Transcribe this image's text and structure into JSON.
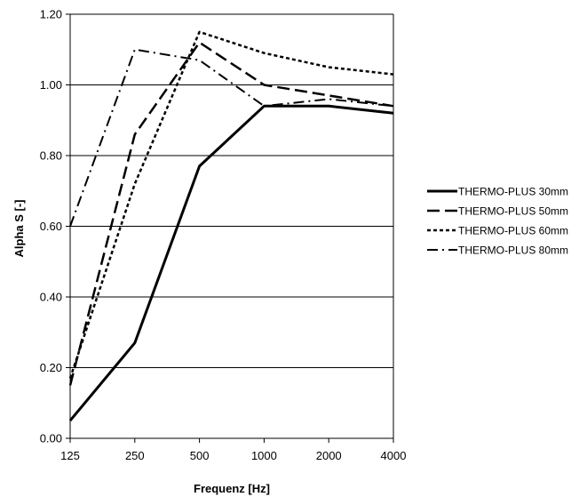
{
  "chart_data": {
    "type": "line",
    "title": "",
    "xlabel": "Frequenz [Hz]",
    "ylabel": "Alpha S [-]",
    "categories": [
      "125",
      "250",
      "500",
      "1000",
      "2000",
      "4000"
    ],
    "ylim": [
      0,
      1.2
    ],
    "yticks": [
      "0.00",
      "0.20",
      "0.40",
      "0.60",
      "0.80",
      "1.00",
      "1.20"
    ],
    "grid": "horizontal",
    "legend_position": "right",
    "series": [
      {
        "name": "THERMO-PLUS 30mm",
        "values": [
          0.05,
          0.27,
          0.77,
          0.94,
          0.94,
          0.92
        ],
        "dash": "solid",
        "width": 3
      },
      {
        "name": "THERMO-PLUS 50mm",
        "values": [
          0.15,
          0.86,
          1.12,
          1.0,
          0.97,
          0.94
        ],
        "dash": "long-dash",
        "width": 2.5
      },
      {
        "name": "THERMO-PLUS 60mm",
        "values": [
          0.17,
          0.72,
          1.15,
          1.09,
          1.05,
          1.03
        ],
        "dash": "dotted",
        "width": 2.5
      },
      {
        "name": "THERMO-PLUS 80mm",
        "values": [
          0.6,
          1.1,
          1.07,
          0.94,
          0.96,
          0.94
        ],
        "dash": "dash-dot",
        "width": 2
      }
    ]
  }
}
